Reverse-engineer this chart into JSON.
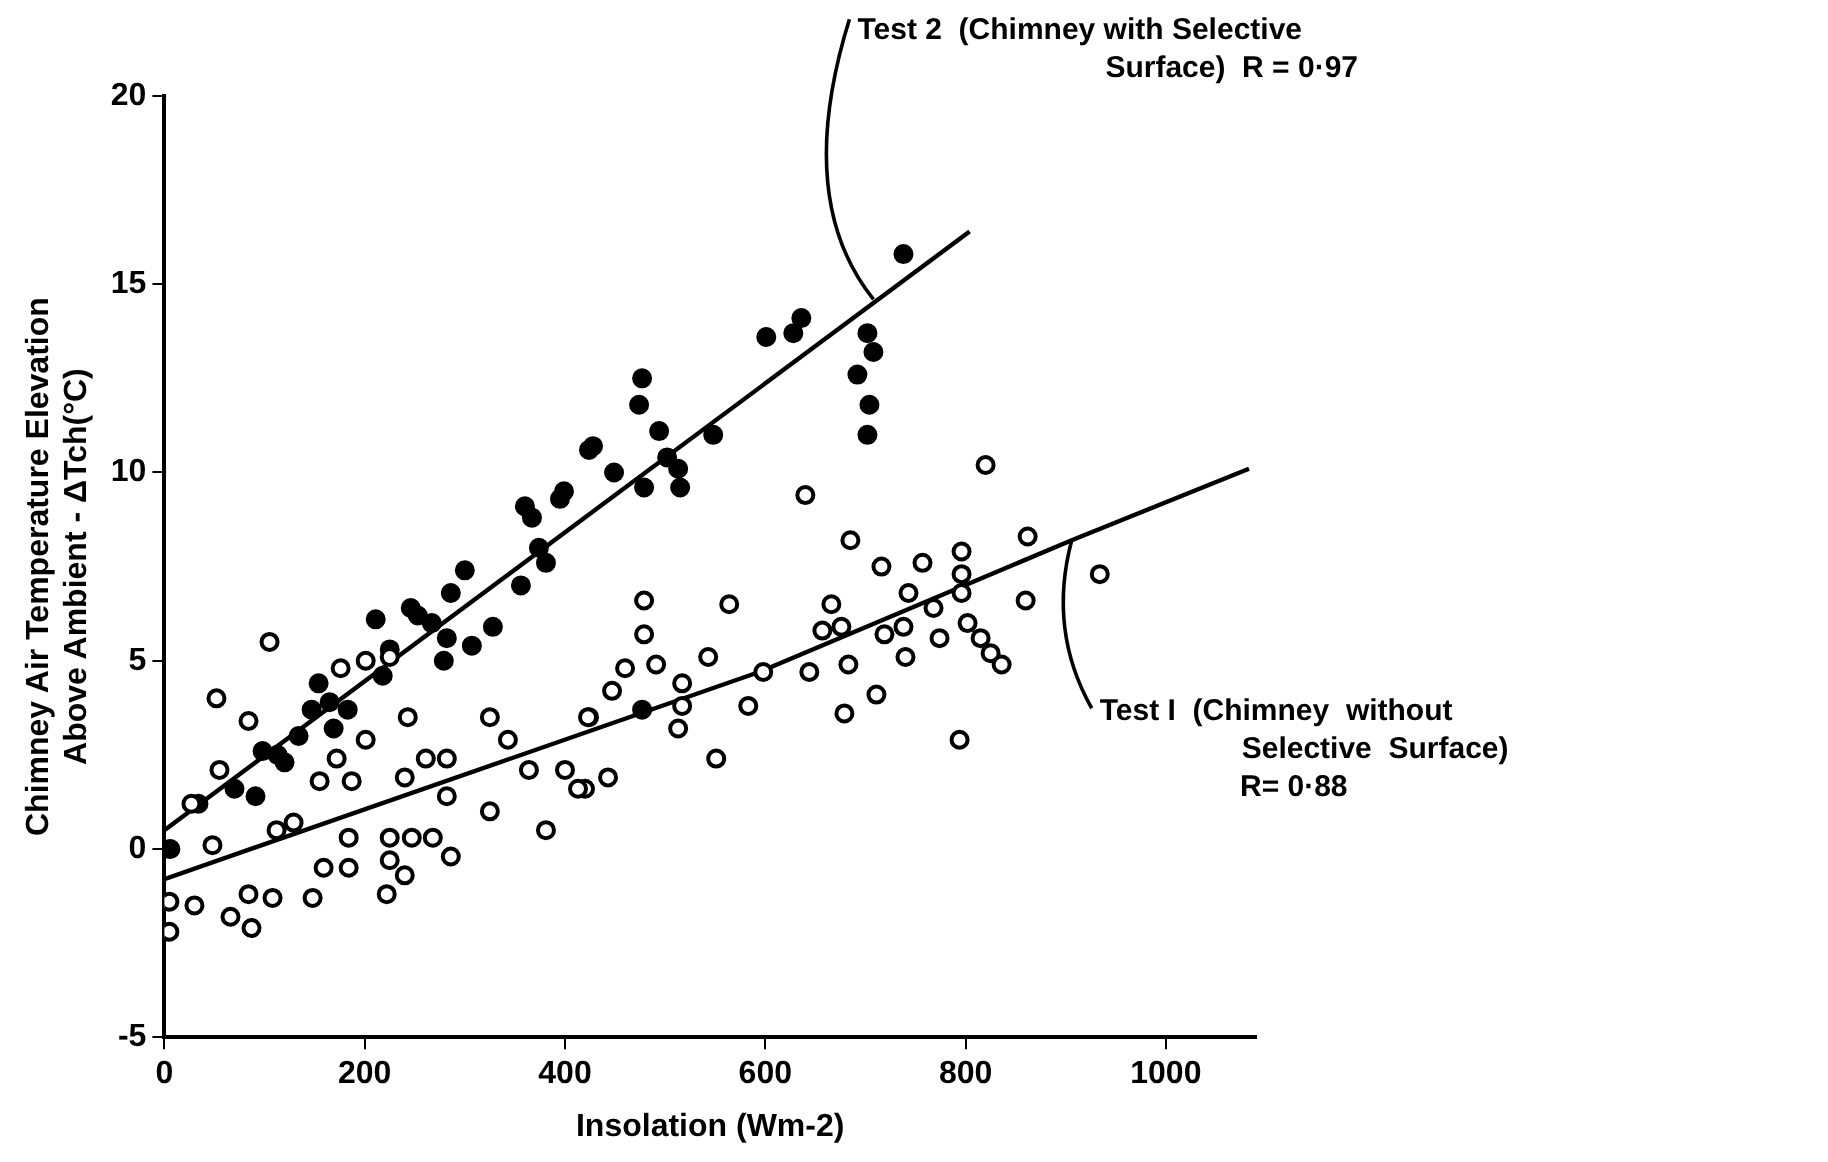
{
  "chart_data": {
    "type": "scatter",
    "xlabel": "Insolation (Wm-2)",
    "ylabel": "Chimney Air Temperature Elevation\nAbove Ambient - ΔTch(°C)",
    "xlim": [
      0,
      1090
    ],
    "xticks": [
      0,
      200,
      400,
      600,
      800,
      1000
    ],
    "ylim": [
      -5,
      20
    ],
    "yticks": [
      -5,
      0,
      5,
      10,
      15,
      20
    ],
    "grid": false,
    "legend": false,
    "marker": "circle",
    "series": [
      {
        "color": "#000000",
        "x": [
          105,
          52,
          84,
          5,
          5,
          30,
          27,
          55,
          48,
          66,
          87,
          84,
          108,
          112,
          129,
          148,
          155,
          159,
          172,
          184,
          187,
          184,
          176,
          201,
          201,
          225,
          222,
          225,
          225,
          240,
          247,
          243,
          240,
          261,
          282,
          282,
          268,
          286,
          325,
          325,
          343,
          364,
          381,
          400,
          420,
          424,
          640,
          820,
          685,
          716,
          757,
          796,
          796,
          796,
          862,
          860,
          934,
          743,
          768,
          774,
          802,
          815,
          825,
          836,
          794,
          711,
          679,
          740,
          719,
          738,
          683,
          644,
          666,
          676,
          657,
          598,
          583,
          551,
          564,
          543,
          513,
          517,
          517,
          491,
          479,
          479,
          460,
          447,
          423,
          443,
          413
        ],
        "values": [
          5.5,
          4,
          3.4,
          -1.4,
          -2.2,
          -1.5,
          1.2,
          2.1,
          0.1,
          -1.8,
          -2.1,
          -1.2,
          -1.3,
          0.5,
          0.7,
          -1.3,
          1.8,
          -0.5,
          2.4,
          -0.5,
          1.8,
          0.3,
          4.8,
          5,
          2.9,
          5.1,
          -1.2,
          -0.3,
          0.3,
          -0.7,
          0.3,
          3.5,
          1.9,
          2.4,
          2.4,
          1.4,
          0.3,
          -0.2,
          3.5,
          1,
          2.9,
          2.1,
          0.5,
          2.1,
          1.6,
          3.5,
          9.4,
          10.2,
          8.2,
          7.5,
          7.6,
          7.9,
          7.3,
          6.8,
          8.3,
          6.6,
          7.3,
          6.8,
          6.4,
          5.6,
          6,
          5.6,
          5.2,
          4.9,
          2.9,
          4.1,
          3.6,
          5.1,
          5.7,
          5.9,
          4.9,
          4.7,
          6.5,
          5.9,
          5.8,
          4.7,
          3.8,
          2.4,
          6.5,
          5.1,
          3.2,
          4.4,
          3.8,
          4.9,
          6.6,
          5.7,
          4.8,
          4.2,
          3.5,
          1.9,
          1.6
        ]
      },
      {
        "color": "#000000",
        "x": [
          6,
          34,
          70,
          91,
          98,
          113,
          120,
          134,
          147,
          154,
          165,
          169,
          183,
          211,
          218,
          225,
          246,
          253,
          267,
          282,
          279,
          286,
          300,
          307,
          328,
          356,
          360,
          367,
          374,
          381,
          395,
          424,
          399,
          428,
          449,
          479,
          474,
          477,
          494,
          502,
          513,
          515,
          548,
          601,
          628,
          636,
          702,
          708,
          692,
          704,
          702,
          738,
          477
        ],
        "values": [
          0,
          1.2,
          1.6,
          1.4,
          2.6,
          2.5,
          2.3,
          3,
          3.7,
          4.4,
          3.9,
          3.2,
          3.7,
          6.1,
          4.6,
          5.3,
          6.4,
          6.2,
          6,
          5.6,
          5,
          6.8,
          7.4,
          5.4,
          5.9,
          7,
          9.1,
          8.8,
          8,
          7.6,
          9.3,
          10.6,
          9.5,
          10.7,
          10,
          9.6,
          11.8,
          12.5,
          11.1,
          10.4,
          10.1,
          9.6,
          11,
          13.6,
          13.7,
          14.1,
          13.7,
          13.2,
          12.6,
          11.8,
          11,
          15.8,
          3.7
        ]
      },
      {
        "type": "line",
        "color": "#000000",
        "marker": "none",
        "line_style": "solid",
        "x": [
          0,
          594,
          906,
          1083
        ],
        "values": [
          -0.8,
          4.7,
          8.2,
          10.1
        ]
      },
      {
        "type": "line",
        "color": "#000000",
        "marker": "none",
        "line_style": "solid",
        "x": [
          0,
          804
        ],
        "values": [
          0.5,
          16.4
        ]
      }
    ],
    "annotations": [
      {
        "text": "Test 2  (Chimney with Selective\nSurface)  R = 0·97",
        "x": 708,
        "y": 14.6
      },
      {
        "text": "Test I  (Chimney  without\nSelective  Surface)\nR= 0·88",
        "x": 906,
        "y": 8.2
      }
    ]
  }
}
